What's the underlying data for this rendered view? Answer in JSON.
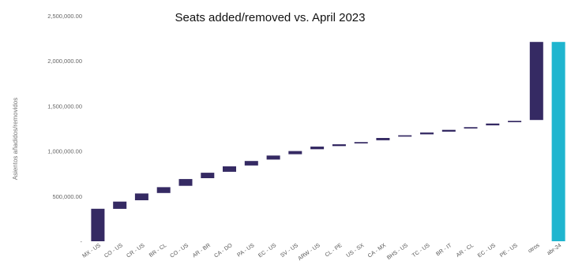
{
  "chart_data": {
    "type": "waterfall",
    "title": "Seats added/removed vs. April 2023",
    "ylabel": "Asientos añadidos/removidos",
    "ylim": [
      0,
      2500000
    ],
    "yticks": [
      0,
      500000,
      1000000,
      1500000,
      2000000,
      2500000
    ],
    "ytick_labels": [
      "-",
      "500,000.00",
      "1,000,000.00",
      "1,500,000.00",
      "2,000,000.00",
      "2,500,000.00"
    ],
    "grid": false,
    "legend": "none",
    "colors": {
      "increment": "#352a63",
      "total": "#1fb5cf"
    },
    "categories": [
      "MX - US",
      "CO - US",
      "CR - US",
      "BR - CL",
      "CO - US",
      "AR - BR",
      "CA - DO",
      "PA - US",
      "EC - US",
      "SV - US",
      "ARW - US",
      "CL - PE",
      "US - SX",
      "CA - MX",
      "BHS - US",
      "TC - US",
      "BR - IT",
      "AR - CL",
      "EC - US",
      "PE - US",
      "otros",
      "abr-24"
    ],
    "bars": [
      {
        "start": 0,
        "end": 360000
      },
      {
        "start": 360000,
        "end": 440000
      },
      {
        "start": 455000,
        "end": 530000
      },
      {
        "start": 535000,
        "end": 600000
      },
      {
        "start": 615000,
        "end": 690000
      },
      {
        "start": 700000,
        "end": 760000
      },
      {
        "start": 770000,
        "end": 830000
      },
      {
        "start": 840000,
        "end": 890000
      },
      {
        "start": 905000,
        "end": 950000
      },
      {
        "start": 965000,
        "end": 1000000
      },
      {
        "start": 1020000,
        "end": 1050000
      },
      {
        "start": 1055000,
        "end": 1075000
      },
      {
        "start": 1085000,
        "end": 1100000
      },
      {
        "start": 1120000,
        "end": 1145000
      },
      {
        "start": 1160000,
        "end": 1175000
      },
      {
        "start": 1185000,
        "end": 1205000
      },
      {
        "start": 1215000,
        "end": 1235000
      },
      {
        "start": 1250000,
        "end": 1265000
      },
      {
        "start": 1285000,
        "end": 1305000
      },
      {
        "start": 1320000,
        "end": 1335000
      },
      {
        "start": 1345000,
        "end": 2210000
      },
      {
        "start": 0,
        "end": 2210000,
        "total": true
      }
    ]
  }
}
